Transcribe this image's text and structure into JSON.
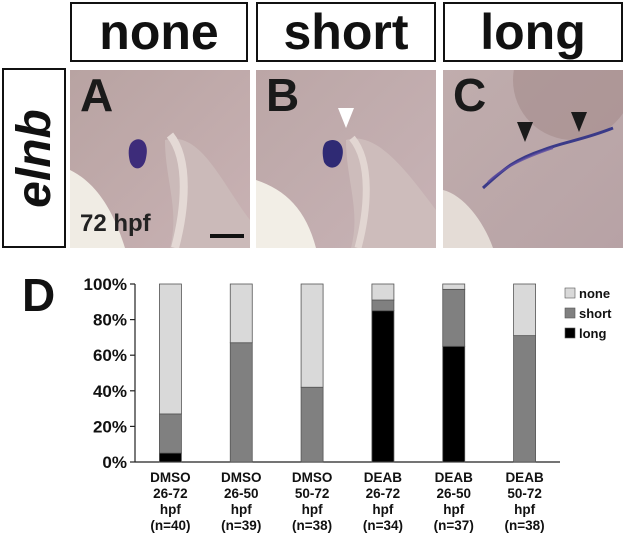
{
  "headers": {
    "none": "none",
    "short": "short",
    "long": "long"
  },
  "gene": "elnb",
  "panels": {
    "a": {
      "letter": "A",
      "stage": "72 hpf"
    },
    "b": {
      "letter": "B"
    },
    "c": {
      "letter": "C"
    }
  },
  "chart_panel_letter": "D",
  "colors": {
    "none": "#d9d9d9",
    "short": "#808080",
    "long": "#000000"
  },
  "chart_data": {
    "type": "bar",
    "stacked": true,
    "categories": [
      [
        "DMSO",
        "26-72",
        "hpf",
        "(n=40)"
      ],
      [
        "DMSO",
        "26-50",
        "hpf",
        "(n=39)"
      ],
      [
        "DMSO",
        "50-72",
        "hpf",
        "(n=38)"
      ],
      [
        "DEAB",
        "26-72",
        "hpf",
        "(n=34)"
      ],
      [
        "DEAB",
        "26-50",
        "hpf",
        "(n=37)"
      ],
      [
        "DEAB",
        "50-72",
        "hpf",
        "(n=38)"
      ]
    ],
    "series": [
      {
        "name": "long",
        "values": [
          5,
          0,
          0,
          85,
          65,
          0
        ]
      },
      {
        "name": "short",
        "values": [
          22,
          67,
          42,
          6,
          32,
          71
        ]
      },
      {
        "name": "none",
        "values": [
          73,
          33,
          58,
          9,
          3,
          29
        ]
      }
    ],
    "legend_order": [
      "none",
      "short",
      "long"
    ],
    "yticks": [
      "0%",
      "20%",
      "40%",
      "60%",
      "80%",
      "100%"
    ],
    "ylim": [
      0,
      100
    ],
    "legend_position": "top-right"
  }
}
